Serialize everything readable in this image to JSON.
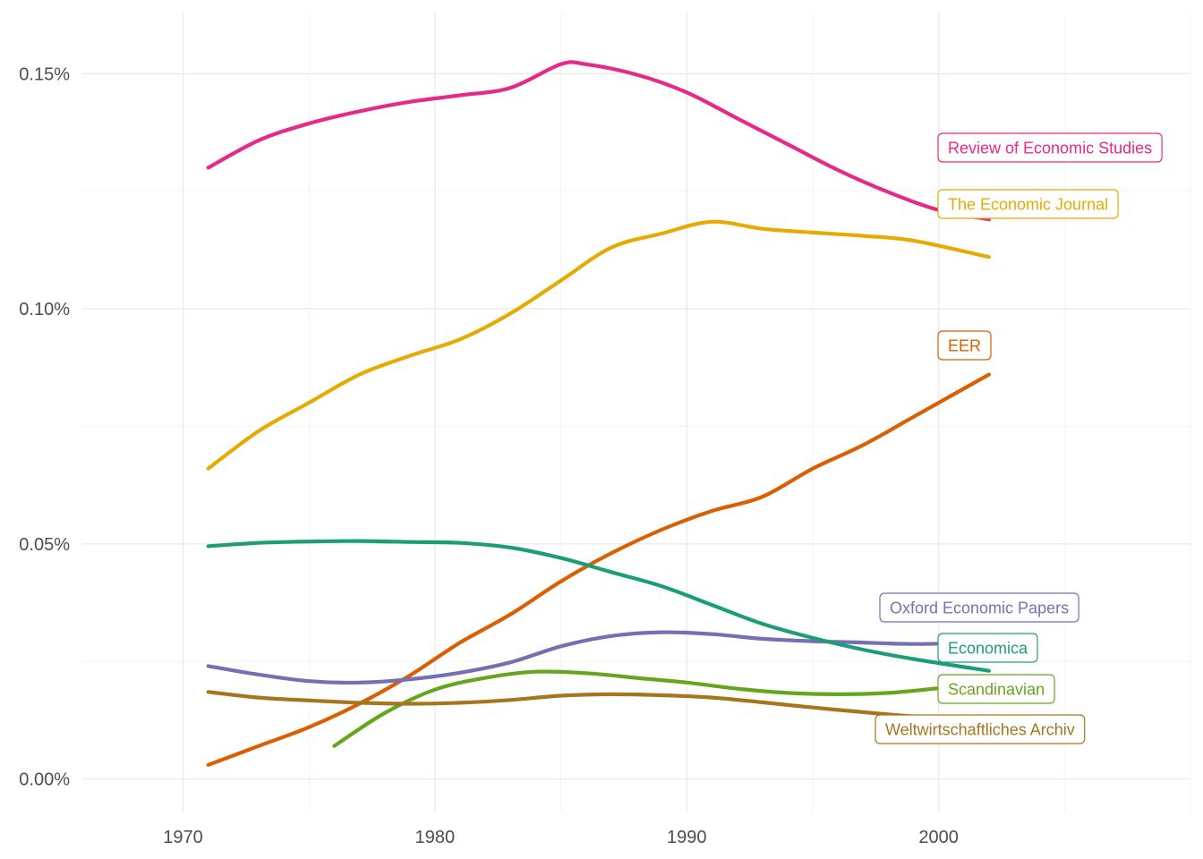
{
  "chart_data": {
    "type": "line",
    "title": "",
    "xlabel": "",
    "ylabel": "",
    "xlim": [
      1966,
      2010
    ],
    "ylim": [
      -7.13e-05,
      0.00163
    ],
    "x_ticks": [
      1970,
      1980,
      1990,
      2000
    ],
    "x_tick_labels": [
      "1970",
      "1980",
      "1990",
      "2000"
    ],
    "x_minor_ticks": [
      1975,
      1985,
      1995,
      2005,
      2010
    ],
    "y_ticks": [
      0.0,
      0.0005,
      0.001,
      0.0015
    ],
    "y_tick_labels": [
      "0.00%",
      "0.05%",
      "0.10%",
      "0.15%"
    ],
    "y_minor_ticks": [
      0.00025,
      0.00075,
      0.00125
    ],
    "grid": true,
    "legend": "none (direct labels at line ends)",
    "series": [
      {
        "name": "Review of Economic Studies",
        "color": "#e7298a",
        "x": [
          1971,
          1973,
          1975,
          1977,
          1979,
          1981,
          1983,
          1985,
          1986,
          1988,
          1990,
          1992,
          1994,
          1996,
          1998,
          2000,
          2002
        ],
        "y": [
          0.0013,
          0.001358,
          0.001394,
          0.00142,
          0.00144,
          0.001454,
          0.00147,
          0.00152,
          0.00152,
          0.001498,
          0.00146,
          0.001405,
          0.00135,
          0.001295,
          0.001248,
          0.00121,
          0.00119
        ]
      },
      {
        "name": "The Economic Journal",
        "color": "#e6ab02",
        "x": [
          1971,
          1973,
          1975,
          1977,
          1979,
          1981,
          1983,
          1985,
          1987,
          1989,
          1991,
          1993,
          1995,
          1997,
          1999,
          2002
        ],
        "y": [
          0.00066,
          0.00074,
          0.0008,
          0.00086,
          0.0009,
          0.000935,
          0.00099,
          0.00106,
          0.00113,
          0.00116,
          0.001185,
          0.00117,
          0.001162,
          0.001155,
          0.001145,
          0.00111
        ]
      },
      {
        "name": "EER",
        "color": "#d95f02",
        "x": [
          1971,
          1973,
          1975,
          1977,
          1979,
          1981,
          1983,
          1985,
          1987,
          1989,
          1991,
          1993,
          1995,
          1997,
          1999,
          2002
        ],
        "y": [
          3e-05,
          7e-05,
          0.00011,
          0.00016,
          0.00022,
          0.00029,
          0.00035,
          0.00042,
          0.00048,
          0.00053,
          0.00057,
          0.0006,
          0.00066,
          0.00071,
          0.00077,
          0.00086
        ]
      },
      {
        "name": "Oxford Economic Papers",
        "color": "#7570b3",
        "x": [
          1971,
          1973,
          1975,
          1977,
          1979,
          1981,
          1983,
          1985,
          1987,
          1989,
          1991,
          1993,
          1995,
          1997,
          1999,
          2002
        ],
        "y": [
          0.00024,
          0.000222,
          0.000208,
          0.000205,
          0.000212,
          0.000226,
          0.000248,
          0.000282,
          0.000304,
          0.000312,
          0.000308,
          0.000298,
          0.000293,
          0.00029,
          0.000287,
          0.00029
        ]
      },
      {
        "name": "Economica",
        "color": "#1b9e77",
        "x": [
          1971,
          1973,
          1975,
          1977,
          1979,
          1981,
          1983,
          1985,
          1987,
          1989,
          1991,
          1993,
          1995,
          1997,
          1999,
          2002
        ],
        "y": [
          0.000495,
          0.000502,
          0.000505,
          0.000506,
          0.000504,
          0.000502,
          0.000492,
          0.00047,
          0.00044,
          0.00041,
          0.00037,
          0.00033,
          0.0003,
          0.000275,
          0.000255,
          0.00023
        ]
      },
      {
        "name": "Scandinavian",
        "color": "#66a61e",
        "x": [
          1976,
          1978,
          1980,
          1982,
          1984,
          1986,
          1988,
          1990,
          1992,
          1994,
          1996,
          1998,
          2000,
          2002
        ],
        "y": [
          7e-05,
          0.00014,
          0.00019,
          0.000215,
          0.000228,
          0.000225,
          0.000215,
          0.000205,
          0.000192,
          0.000183,
          0.00018,
          0.000183,
          0.000193,
          0.000205
        ]
      },
      {
        "name": "Weltwirtschaftliches Archiv",
        "color": "#a6761d",
        "x": [
          1971,
          1973,
          1975,
          1977,
          1979,
          1981,
          1983,
          1985,
          1987,
          1989,
          1991,
          1993,
          1995,
          1997,
          1999,
          2001
        ],
        "y": [
          0.000185,
          0.000173,
          0.000167,
          0.000162,
          0.00016,
          0.000162,
          0.000168,
          0.000177,
          0.00018,
          0.000178,
          0.000173,
          0.000163,
          0.000152,
          0.000142,
          0.000133,
          0.000125
        ]
      }
    ]
  }
}
